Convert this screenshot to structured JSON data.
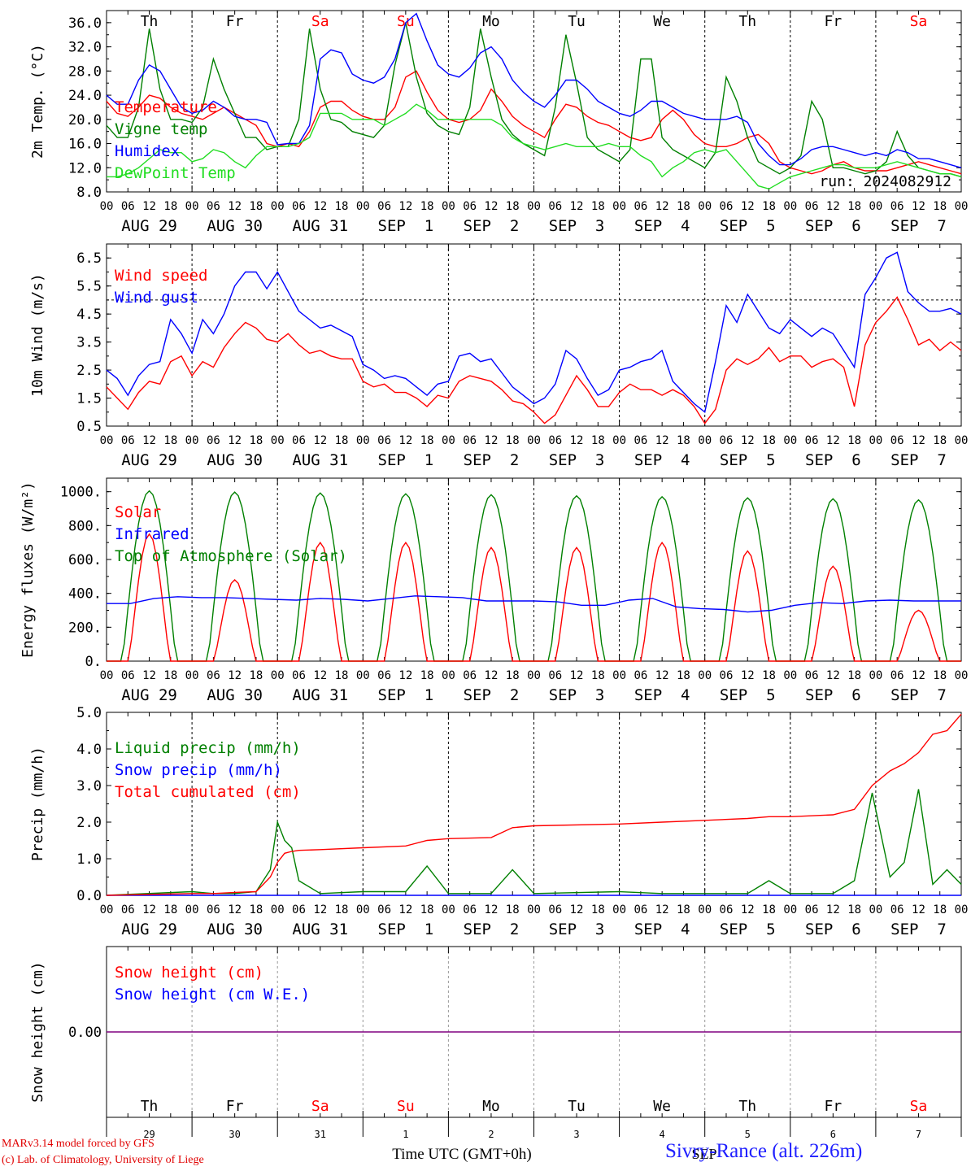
{
  "colors": {
    "red": "#ff0000",
    "green": "#008000",
    "blue": "#0000ff",
    "lightgreen": "#22dd22",
    "weekend": "#ff0000",
    "weekday": "#000000",
    "purple": "#800080"
  },
  "days": {
    "weekdays": [
      "Th",
      "Fr",
      "Sa",
      "Su",
      "Mo",
      "Tu",
      "We",
      "Th",
      "Fr",
      "Sa"
    ],
    "weekend": [
      false,
      false,
      true,
      true,
      false,
      false,
      false,
      false,
      false,
      true
    ],
    "dates": [
      "AUG 29",
      "AUG 30",
      "AUG 31",
      "SEP  1",
      "SEP  2",
      "SEP  3",
      "SEP  4",
      "SEP  5",
      "SEP  6",
      "SEP  7"
    ],
    "day_numbers": [
      "29",
      "30",
      "31",
      "1",
      "2",
      "3",
      "4",
      "5",
      "6",
      "7"
    ],
    "hour_ticks": [
      "00",
      "06",
      "12",
      "18"
    ],
    "end_tick": "00"
  },
  "footer": {
    "credit_line1": "MARv3.14 model forced by GFS",
    "credit_line2": "(c) Lab. of Climatology, University of Liege",
    "xaxis_label": "Time UTC (GMT+0h)",
    "month_label": "SEP",
    "station": "Sivry-Rance (alt. 226m)"
  },
  "chart_data": [
    {
      "type": "line",
      "ylabel": "2m Temp. (°C)",
      "ylim": [
        8,
        38
      ],
      "yticks": [
        "8.0",
        "12.0",
        "16.0",
        "20.0",
        "24.0",
        "28.0",
        "32.0",
        "36.0"
      ],
      "annotation": "run: 2024082912",
      "x_hours_from_start": [
        0,
        3,
        6,
        9,
        12,
        15,
        18,
        21,
        24,
        27,
        30,
        33,
        36,
        39,
        42,
        45,
        48,
        51,
        54,
        57,
        60,
        63,
        66,
        69,
        72,
        75,
        78,
        81,
        84,
        87,
        90,
        93,
        96,
        99,
        102,
        105,
        108,
        111,
        114,
        117,
        120,
        123,
        126,
        129,
        132,
        135,
        138,
        141,
        144,
        147,
        150,
        153,
        156,
        159,
        162,
        165,
        168,
        171,
        174,
        177,
        180,
        183,
        186,
        189,
        192,
        195,
        198,
        201,
        204,
        207,
        210,
        213,
        216,
        219,
        222,
        225,
        228,
        231,
        234,
        237,
        240
      ],
      "series": [
        {
          "name": "Temperature",
          "color": "red",
          "values": [
            23,
            21,
            20.5,
            22,
            24,
            23.5,
            22,
            21,
            20.5,
            20,
            21,
            22,
            21,
            20,
            19,
            16,
            15.5,
            16,
            15.5,
            18,
            22,
            23,
            23,
            21.5,
            20.5,
            20,
            20,
            22,
            27,
            28,
            24.5,
            21.5,
            20,
            19.5,
            20,
            21.5,
            25,
            23,
            20.5,
            19,
            18,
            17,
            20,
            22.5,
            22,
            20.5,
            19.5,
            19,
            18,
            17,
            16.5,
            17,
            20,
            21.5,
            20,
            17.5,
            16,
            15.5,
            15.5,
            16,
            17,
            17.5,
            16,
            13,
            12,
            11.5,
            11,
            11.5,
            12.5,
            13,
            12,
            11.5,
            11.5,
            11.5,
            12,
            12.5,
            13,
            12.5,
            12,
            11.5,
            11
          ]
        },
        {
          "name": "Vigne temp",
          "color": "green",
          "values": [
            19,
            17,
            17,
            22,
            35,
            25,
            20,
            20,
            19.5,
            22,
            30,
            25,
            21,
            17,
            17,
            15,
            15.5,
            15.5,
            20,
            35,
            25,
            20,
            19.5,
            18,
            17.5,
            17,
            19,
            29,
            36,
            27,
            21,
            19,
            18,
            17.5,
            22,
            35,
            27,
            20,
            17.5,
            16,
            15,
            14,
            22,
            34,
            26,
            17,
            15,
            14,
            13,
            15,
            30,
            30,
            17,
            15,
            14,
            13,
            12,
            14.5,
            27,
            23,
            17,
            13,
            12,
            11,
            12,
            14,
            23,
            20,
            12,
            12,
            11.5,
            11,
            11.5,
            13,
            18,
            14,
            12,
            11.5,
            11,
            11,
            10.5
          ]
        },
        {
          "name": "Humidex",
          "color": "blue",
          "values": [
            24,
            22.5,
            22.5,
            26.5,
            29,
            28,
            25,
            22,
            21,
            21.5,
            23,
            22,
            20.5,
            20,
            20,
            19.5,
            15.8,
            16,
            16,
            19,
            30,
            31.5,
            31,
            27.5,
            26.5,
            26,
            27,
            30,
            36,
            37.5,
            33,
            29,
            27.5,
            27,
            28.5,
            31,
            32,
            30,
            26.5,
            24.5,
            23,
            22,
            24,
            26.5,
            26.5,
            25,
            23,
            22,
            21,
            20.5,
            21.5,
            23,
            23,
            22,
            21,
            20.5,
            20,
            20,
            20,
            20.5,
            19.5,
            16,
            14,
            12.5,
            12.5,
            13.5,
            15,
            15.5,
            15.5,
            15,
            14.5,
            14,
            14.5,
            14,
            15,
            14.5,
            13.5,
            13.5,
            13,
            12.5,
            12
          ]
        },
        {
          "name": "DewPoint Temp",
          "color": "lightgreen",
          "values": [
            10.5,
            10.5,
            11,
            12,
            13.5,
            15,
            14.5,
            14.5,
            13,
            13.5,
            15,
            14.5,
            13,
            12,
            14,
            15.5,
            15.5,
            15.5,
            16,
            17,
            21,
            21,
            21,
            20,
            20,
            20,
            19,
            20,
            21,
            22.5,
            21.5,
            20,
            20,
            20,
            20,
            20,
            20,
            19,
            17,
            16,
            15.5,
            15,
            15.5,
            16,
            15.5,
            15.5,
            15.5,
            16,
            15.5,
            15.5,
            14,
            13,
            10.5,
            12,
            13,
            14.5,
            15,
            14.5,
            15,
            13,
            11,
            9,
            8.5,
            9.5,
            10.5,
            11,
            11.5,
            12,
            12.5,
            12.5,
            12,
            12,
            12,
            12.5,
            13,
            12.5,
            12,
            11.5,
            11,
            11,
            10.5
          ]
        }
      ]
    },
    {
      "type": "line",
      "ylabel": "10m Wind (m/s)",
      "ylim": [
        0.5,
        7
      ],
      "yticks": [
        "0.5",
        "1.5",
        "2.5",
        "3.5",
        "4.5",
        "5.5",
        "6.5"
      ],
      "reference_line": 5,
      "x_hours_from_start": [
        0,
        3,
        6,
        9,
        12,
        15,
        18,
        21,
        24,
        27,
        30,
        33,
        36,
        39,
        42,
        45,
        48,
        51,
        54,
        57,
        60,
        63,
        66,
        69,
        72,
        75,
        78,
        81,
        84,
        87,
        90,
        93,
        96,
        99,
        102,
        105,
        108,
        111,
        114,
        117,
        120,
        123,
        126,
        129,
        132,
        135,
        138,
        141,
        144,
        147,
        150,
        153,
        156,
        159,
        162,
        165,
        168,
        171,
        174,
        177,
        180,
        183,
        186,
        189,
        192,
        195,
        198,
        201,
        204,
        207,
        210,
        213,
        216,
        219,
        222,
        225,
        228,
        231,
        234,
        237,
        240
      ],
      "series": [
        {
          "name": "Wind speed",
          "color": "red",
          "values": [
            1.9,
            1.5,
            1.1,
            1.7,
            2.1,
            2.0,
            2.8,
            3.0,
            2.3,
            2.8,
            2.6,
            3.3,
            3.8,
            4.2,
            4.0,
            3.6,
            3.5,
            3.8,
            3.4,
            3.1,
            3.2,
            3.0,
            2.9,
            2.9,
            2.1,
            1.9,
            2.0,
            1.7,
            1.7,
            1.5,
            1.2,
            1.6,
            1.5,
            2.1,
            2.3,
            2.2,
            2.1,
            1.8,
            1.4,
            1.3,
            1.0,
            0.6,
            0.9,
            1.6,
            2.3,
            1.8,
            1.2,
            1.2,
            1.7,
            2.0,
            1.8,
            1.8,
            1.6,
            1.8,
            1.6,
            1.2,
            0.6,
            1.1,
            2.5,
            2.9,
            2.7,
            2.9,
            3.3,
            2.8,
            3.0,
            3.0,
            2.6,
            2.8,
            2.9,
            2.6,
            1.2,
            3.4,
            4.2,
            4.6,
            5.1,
            4.3,
            3.4,
            3.6,
            3.2,
            3.5,
            3.2
          ]
        },
        {
          "name": "Wind gust",
          "color": "blue",
          "values": [
            2.5,
            2.2,
            1.6,
            2.3,
            2.7,
            2.8,
            4.3,
            3.8,
            3.1,
            4.3,
            3.8,
            4.5,
            5.5,
            6.0,
            6.0,
            5.4,
            6.0,
            5.3,
            4.6,
            4.3,
            4.0,
            4.1,
            3.9,
            3.7,
            2.7,
            2.5,
            2.2,
            2.3,
            2.2,
            1.9,
            1.6,
            2.0,
            2.1,
            3.0,
            3.1,
            2.8,
            2.9,
            2.4,
            1.9,
            1.6,
            1.3,
            1.5,
            2.0,
            3.2,
            2.9,
            2.2,
            1.6,
            1.8,
            2.5,
            2.6,
            2.8,
            2.9,
            3.2,
            2.1,
            1.7,
            1.3,
            1.0,
            2.8,
            4.8,
            4.2,
            5.2,
            4.6,
            4.0,
            3.8,
            4.3,
            4.0,
            3.7,
            4.0,
            3.8,
            3.2,
            2.6,
            5.2,
            5.8,
            6.5,
            6.7,
            5.3,
            4.9,
            4.6,
            4.6,
            4.7,
            4.5
          ]
        }
      ]
    },
    {
      "type": "line",
      "ylabel": "Energy fluxes (W/m²)",
      "ylim": [
        0,
        1080
      ],
      "yticks": [
        "0.",
        "200.",
        "400.",
        "600.",
        "800.",
        "1000."
      ],
      "daily_peaks": {
        "Top of Atmosphere (Solar)": [
          1005,
          998,
          992,
          988,
          982,
          976,
          970,
          964,
          958,
          952
        ],
        "Solar": [
          750,
          480,
          700,
          700,
          670,
          670,
          700,
          650,
          560,
          300
        ]
      },
      "series": [
        {
          "name": "Solar",
          "color": "red",
          "values": []
        },
        {
          "name": "Infrared",
          "color": "blue",
          "values": [
            340,
            340,
            370,
            380,
            375,
            375,
            370,
            365,
            360,
            370,
            365,
            355,
            370,
            385,
            380,
            375,
            355,
            355,
            355,
            350,
            330,
            330,
            360,
            370,
            320,
            310,
            305,
            290,
            300,
            330,
            345,
            340,
            355,
            360,
            355,
            355,
            355
          ]
        },
        {
          "name": "Top of Atmosphere (Solar)",
          "color": "green",
          "values": []
        }
      ]
    },
    {
      "type": "line",
      "ylabel": "Precip (mm/h)",
      "ylim": [
        0,
        5
      ],
      "yticks": [
        "0.0",
        "1.0",
        "2.0",
        "3.0",
        "4.0",
        "5.0"
      ],
      "x_hours_from_start": [
        0,
        24,
        30,
        36,
        42,
        46,
        48,
        50,
        52,
        54,
        60,
        72,
        84,
        90,
        96,
        108,
        114,
        120,
        144,
        156,
        168,
        180,
        186,
        192,
        204,
        210,
        215,
        220,
        224,
        228,
        232,
        236,
        240
      ],
      "series": [
        {
          "name": "Liquid precip (mm/h)",
          "color": "green",
          "values": [
            0,
            0.1,
            0.05,
            0.05,
            0.1,
            0.7,
            2.0,
            1.5,
            1.3,
            0.4,
            0.05,
            0.1,
            0.1,
            0.8,
            0.05,
            0.05,
            0.7,
            0.05,
            0.1,
            0.05,
            0.05,
            0.05,
            0.4,
            0.05,
            0.05,
            0.4,
            2.8,
            0.5,
            0.9,
            2.9,
            0.3,
            0.7,
            0.3
          ]
        },
        {
          "name": "Snow precip (mm/h)",
          "color": "blue",
          "values": [
            0,
            0,
            0,
            0,
            0,
            0,
            0,
            0,
            0,
            0,
            0,
            0,
            0,
            0,
            0,
            0,
            0,
            0,
            0,
            0,
            0,
            0,
            0,
            0,
            0,
            0,
            0,
            0,
            0,
            0,
            0,
            0,
            0
          ]
        },
        {
          "name": "Total cumulated (cm)",
          "color": "red",
          "values": [
            0,
            0.05,
            0.05,
            0.08,
            0.1,
            0.5,
            0.9,
            1.15,
            1.2,
            1.23,
            1.25,
            1.3,
            1.35,
            1.5,
            1.55,
            1.58,
            1.85,
            1.9,
            1.95,
            2.0,
            2.05,
            2.1,
            2.15,
            2.15,
            2.2,
            2.35,
            3.0,
            3.4,
            3.6,
            3.9,
            4.4,
            4.5,
            4.95
          ]
        }
      ]
    },
    {
      "type": "line",
      "ylabel": "Snow height (cm)",
      "yticks": [
        "0.00"
      ],
      "series": [
        {
          "name": "Snow height (cm)",
          "color": "red",
          "values": [
            0,
            0
          ]
        },
        {
          "name": "Snow height (cm W.E.)",
          "color": "blue",
          "values": [
            0,
            0
          ]
        }
      ]
    }
  ]
}
